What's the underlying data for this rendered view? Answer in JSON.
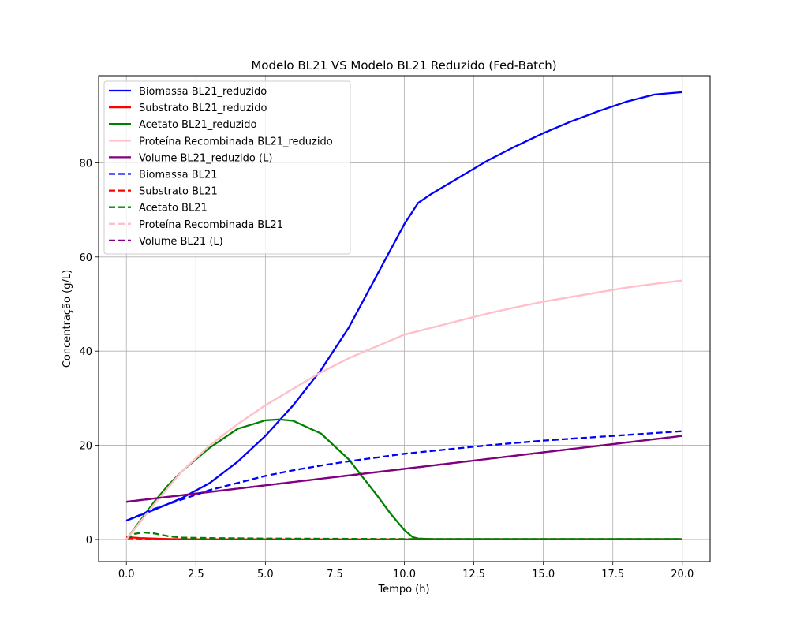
{
  "chart_data": {
    "type": "line",
    "title": "Modelo BL21 VS Modelo BL21 Reduzido (Fed-Batch)",
    "xlabel": "Tempo (h)",
    "ylabel": "Concentração (g/L)",
    "xlim": [
      -1.0,
      21.0
    ],
    "ylim": [
      -4.7,
      98.5
    ],
    "xticks": [
      0.0,
      2.5,
      5.0,
      7.5,
      10.0,
      12.5,
      15.0,
      17.5,
      20.0
    ],
    "xtick_labels": [
      "0.0",
      "2.5",
      "5.0",
      "7.5",
      "10.0",
      "12.5",
      "15.0",
      "17.5",
      "20.0"
    ],
    "yticks": [
      0,
      20,
      40,
      60,
      80
    ],
    "ytick_labels": [
      "0",
      "20",
      "40",
      "60",
      "80"
    ],
    "grid": true,
    "legend_position": "top-left",
    "series": [
      {
        "name": "Biomassa BL21_reduzido",
        "color": "#0000ff",
        "dash": "solid",
        "x": [
          0,
          1,
          2,
          3,
          4,
          5,
          6,
          7,
          8,
          9,
          10,
          10.5,
          11,
          12,
          13,
          14,
          15,
          16,
          17,
          18,
          19,
          20
        ],
        "y": [
          4,
          6.3,
          8.8,
          12,
          16.5,
          22,
          28.5,
          36,
          45,
          56,
          67,
          71.5,
          73.5,
          77,
          80.5,
          83.5,
          86.3,
          88.8,
          91,
          93,
          94.5,
          95
        ]
      },
      {
        "name": "Substrato BL21_reduzido",
        "color": "#ff0000",
        "dash": "solid",
        "x": [
          0,
          0.5,
          1,
          1.5,
          2,
          3,
          5,
          10,
          15,
          20
        ],
        "y": [
          0.5,
          0.3,
          0.2,
          0.1,
          0.05,
          0.02,
          0.01,
          0.01,
          0.01,
          0.01
        ]
      },
      {
        "name": "Acetato BL21_reduzido",
        "color": "#008000",
        "dash": "solid",
        "x": [
          0,
          0.5,
          1,
          1.5,
          2,
          3,
          4,
          5,
          5.5,
          6,
          7,
          8,
          9,
          9.5,
          10,
          10.3,
          10.5,
          11,
          15,
          20
        ],
        "y": [
          0,
          4,
          8,
          11.5,
          14.5,
          19.5,
          23.5,
          25.3,
          25.5,
          25.2,
          22.5,
          17,
          9.5,
          5.5,
          2,
          0.5,
          0.2,
          0.1,
          0.1,
          0.1
        ]
      },
      {
        "name": "Proteína Recombinada BL21_reduzido",
        "color": "#ffc0cb",
        "dash": "solid",
        "x": [
          0,
          1,
          2,
          3,
          4,
          5,
          6,
          7,
          8,
          9,
          10,
          11,
          12,
          13,
          14,
          15,
          16,
          17,
          18,
          19,
          20
        ],
        "y": [
          0,
          7.5,
          14.5,
          20,
          24.5,
          28.5,
          32,
          35.5,
          38.5,
          41,
          43.5,
          45,
          46.5,
          48,
          49.3,
          50.5,
          51.5,
          52.5,
          53.5,
          54.3,
          55
        ]
      },
      {
        "name": "Volume BL21_reduzido (L)",
        "color": "#800080",
        "dash": "solid",
        "x": [
          0,
          20
        ],
        "y": [
          8,
          22
        ]
      },
      {
        "name": "Biomassa BL21",
        "color": "#0000ff",
        "dash": "dashed",
        "x": [
          0,
          1,
          2,
          3,
          4,
          5,
          6,
          7,
          8,
          9,
          10,
          11,
          12,
          13,
          14,
          15,
          16,
          17,
          18,
          19,
          20
        ],
        "y": [
          4,
          6.5,
          8.5,
          10.5,
          12,
          13.5,
          14.7,
          15.7,
          16.6,
          17.4,
          18.2,
          18.8,
          19.4,
          20,
          20.5,
          21,
          21.4,
          21.8,
          22.2,
          22.6,
          23
        ]
      },
      {
        "name": "Substrato BL21",
        "color": "#ff0000",
        "dash": "dashed",
        "x": [
          0,
          0.5,
          1,
          2,
          5,
          10,
          20
        ],
        "y": [
          0.3,
          0.2,
          0.1,
          0.05,
          0.02,
          0.01,
          0.01
        ]
      },
      {
        "name": "Acetato BL21",
        "color": "#008000",
        "dash": "dashed",
        "x": [
          0,
          0.3,
          0.6,
          1,
          1.5,
          2,
          3,
          5,
          10,
          20
        ],
        "y": [
          0,
          1.2,
          1.5,
          1.3,
          0.7,
          0.4,
          0.3,
          0.2,
          0.1,
          0.1
        ]
      },
      {
        "name": "Proteína Recombinada BL21",
        "color": "#ffc0cb",
        "dash": "dashed",
        "x": [
          0,
          1,
          2,
          3,
          4,
          5,
          6,
          7,
          8,
          9,
          10,
          11,
          12,
          13,
          14,
          15,
          16,
          17,
          18,
          19,
          20
        ],
        "y": [
          0,
          7.5,
          14.5,
          20,
          24.5,
          28.5,
          32,
          35.5,
          38.5,
          41,
          43.5,
          45,
          46.5,
          48,
          49.3,
          50.5,
          51.5,
          52.5,
          53.5,
          54.3,
          55
        ]
      },
      {
        "name": "Volume BL21 (L)",
        "color": "#800080",
        "dash": "dashed",
        "x": [
          0,
          20
        ],
        "y": [
          8,
          22
        ]
      }
    ]
  }
}
